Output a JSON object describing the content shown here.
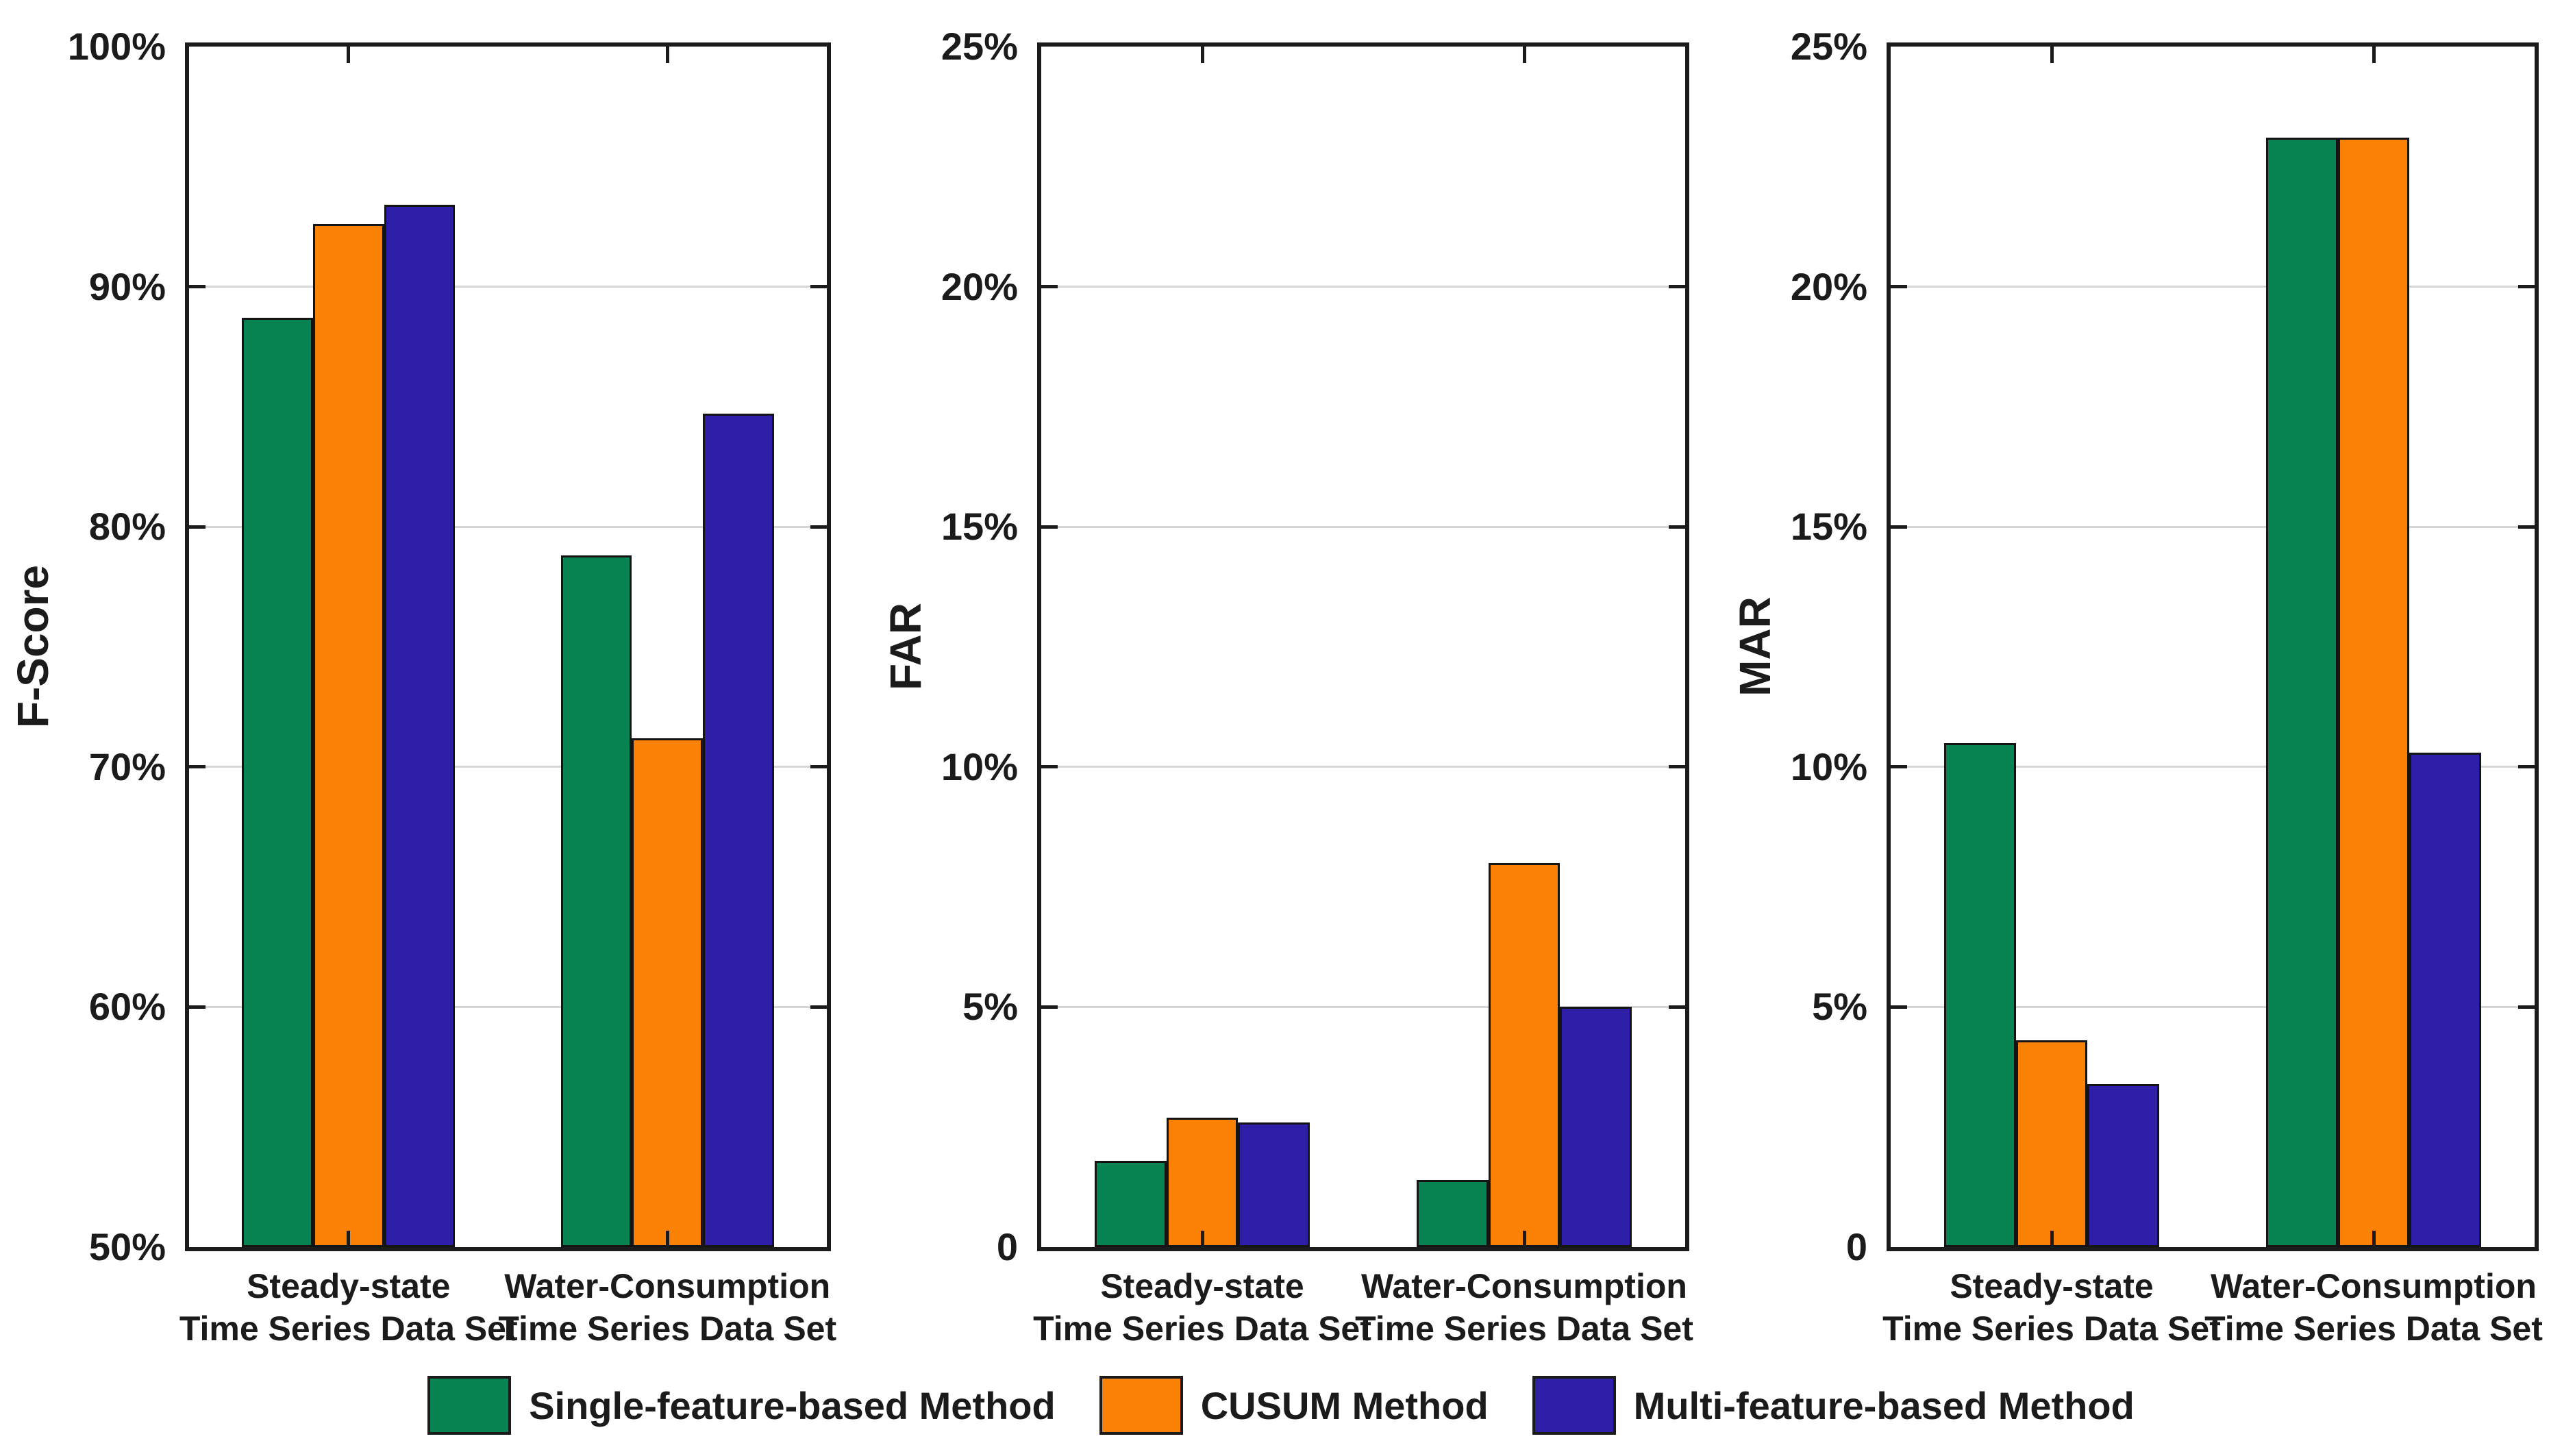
{
  "figure": {
    "background": "#ffffff",
    "axis_color": "#1b1b1b",
    "grid_color": "#d6d6d6",
    "bar_border_color": "#141414",
    "text_color": "#1b1b1b"
  },
  "legend": {
    "position": "bottom-center",
    "items": [
      {
        "label": "Single-feature-based Method",
        "color": "#068351"
      },
      {
        "label": "CUSUM Method",
        "color": "#FC8205"
      },
      {
        "label": "Multi-feature-based Method",
        "color": "#2F1FA8"
      }
    ]
  },
  "chart_data": [
    {
      "type": "bar",
      "ylabel": "F-Score",
      "ylim": [
        50,
        100
      ],
      "grid": "horizontal gridlines at labeled ticks, box on, inward ticks",
      "yticks": [
        {
          "value": 50,
          "label": "50%"
        },
        {
          "value": 60,
          "label": "60%"
        },
        {
          "value": 70,
          "label": "70%"
        },
        {
          "value": 80,
          "label": "80%"
        },
        {
          "value": 90,
          "label": "90%"
        },
        {
          "value": 100,
          "label": "100%"
        }
      ],
      "categories": [
        {
          "lines": [
            "Steady-state",
            "Time Series Data Set"
          ]
        },
        {
          "lines": [
            "Water-Consumption",
            "Time Series Data Set"
          ]
        }
      ],
      "series": [
        {
          "name": "Single-feature-based Method",
          "color": "#068351",
          "values": [
            88.7,
            78.8
          ]
        },
        {
          "name": "CUSUM Method",
          "color": "#FC8205",
          "values": [
            92.6,
            71.2
          ]
        },
        {
          "name": "Multi-feature-based Method",
          "color": "#2F1FA8",
          "values": [
            93.4,
            84.7
          ]
        }
      ],
      "legend_position": "shared bottom legend"
    },
    {
      "type": "bar",
      "ylabel": "FAR",
      "ylim": [
        0,
        25
      ],
      "grid": "horizontal gridlines at labeled ticks, box on, inward ticks",
      "yticks": [
        {
          "value": 0,
          "label": "0"
        },
        {
          "value": 5,
          "label": "5%"
        },
        {
          "value": 10,
          "label": "10%"
        },
        {
          "value": 15,
          "label": "15%"
        },
        {
          "value": 20,
          "label": "20%"
        },
        {
          "value": 25,
          "label": "25%"
        }
      ],
      "categories": [
        {
          "lines": [
            "Steady-state",
            "Time Series Data Set"
          ]
        },
        {
          "lines": [
            "Water-Consumption",
            "Time Series Data Set"
          ]
        }
      ],
      "series": [
        {
          "name": "Single-feature-based Method",
          "color": "#068351",
          "values": [
            1.8,
            1.4
          ]
        },
        {
          "name": "CUSUM Method",
          "color": "#FC8205",
          "values": [
            2.7,
            8.0
          ]
        },
        {
          "name": "Multi-feature-based Method",
          "color": "#2F1FA8",
          "values": [
            2.6,
            5.0
          ]
        }
      ],
      "legend_position": "shared bottom legend"
    },
    {
      "type": "bar",
      "ylabel": "MAR",
      "ylim": [
        0,
        25
      ],
      "grid": "horizontal gridlines at labeled ticks, box on, inward ticks",
      "yticks": [
        {
          "value": 0,
          "label": "0"
        },
        {
          "value": 5,
          "label": "5%"
        },
        {
          "value": 10,
          "label": "10%"
        },
        {
          "value": 15,
          "label": "15%"
        },
        {
          "value": 20,
          "label": "20%"
        },
        {
          "value": 25,
          "label": "25%"
        }
      ],
      "categories": [
        {
          "lines": [
            "Steady-state",
            "Time Series Data Set"
          ]
        },
        {
          "lines": [
            "Water-Consumption",
            "Time Series Data Set"
          ]
        }
      ],
      "series": [
        {
          "name": "Single-feature-based Method",
          "color": "#068351",
          "values": [
            10.5,
            23.1
          ]
        },
        {
          "name": "CUSUM Method",
          "color": "#FC8205",
          "values": [
            4.3,
            23.1
          ]
        },
        {
          "name": "Multi-feature-based Method",
          "color": "#2F1FA8",
          "values": [
            3.4,
            10.3
          ]
        }
      ],
      "legend_position": "shared bottom legend"
    }
  ]
}
